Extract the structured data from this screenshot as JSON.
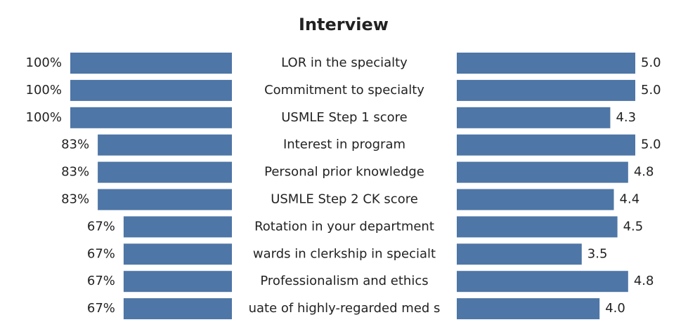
{
  "chart_data": {
    "type": "bar",
    "title": "Interview",
    "categories": [
      "LOR in the specialty",
      "Commitment to specialty",
      "USMLE Step 1 score",
      "Interest in program",
      "Personal prior knowledge",
      "USMLE Step 2 CK score",
      "Rotation in your department",
      "wards  in clerkship in specialt",
      "Professionalism and ethics",
      "uate of highly-regarded med s"
    ],
    "series": [
      {
        "color": "#4e76a6",
        "xlim": [
          0,
          100
        ],
        "values": [
          100,
          100,
          100,
          83,
          83,
          83,
          67,
          67,
          67,
          67
        ],
        "value_labels": [
          "100%",
          "100%",
          "100%",
          "83%",
          "83%",
          "83%",
          "67%",
          "67%",
          "67%",
          "67%"
        ]
      },
      {
        "color": "#4e76a6",
        "xlim": [
          0,
          5
        ],
        "values": [
          5,
          5,
          4.3,
          5,
          4.8,
          4.4,
          4.5,
          3.5,
          4.8,
          4
        ],
        "value_labels": [
          "5.0",
          "5.0",
          "4.3",
          "5.0",
          "4.8",
          "4.4",
          "4.5",
          "3.5",
          "4.8",
          "4.0"
        ]
      }
    ]
  }
}
